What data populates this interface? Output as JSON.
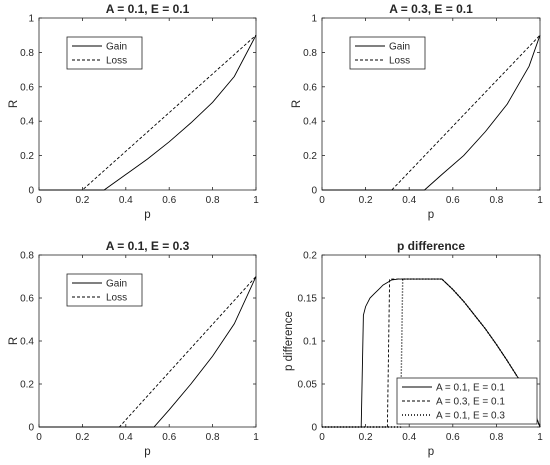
{
  "chart_data": [
    {
      "type": "line",
      "title": "A = 0.1, E = 0.1",
      "xlabel": "p",
      "ylabel": "R",
      "xlim": [
        0,
        1
      ],
      "ylim": [
        0,
        1
      ],
      "xticks": [
        "0",
        "0.2",
        "0.4",
        "0.6",
        "0.8",
        "1"
      ],
      "yticks": [
        "0",
        "0.2",
        "0.4",
        "0.6",
        "0.8",
        "1"
      ],
      "grid": false,
      "legend_position": "top-left",
      "series": [
        {
          "name": "Gain",
          "style": "solid",
          "x": [
            0,
            0.3,
            0.4,
            0.5,
            0.6,
            0.7,
            0.8,
            0.9,
            1.0
          ],
          "y": [
            0,
            0,
            0.09,
            0.18,
            0.28,
            0.39,
            0.51,
            0.66,
            0.9
          ]
        },
        {
          "name": "Loss",
          "style": "dashed",
          "x": [
            0,
            0.2,
            1.0
          ],
          "y": [
            0,
            0,
            0.9
          ]
        }
      ]
    },
    {
      "type": "line",
      "title": "A = 0.3, E = 0.1",
      "xlabel": "p",
      "ylabel": "R",
      "xlim": [
        0,
        1
      ],
      "ylim": [
        0,
        1
      ],
      "xticks": [
        "0",
        "0.2",
        "0.4",
        "0.6",
        "0.8",
        "1"
      ],
      "yticks": [
        "0",
        "0.2",
        "0.4",
        "0.6",
        "0.8",
        "1"
      ],
      "grid": false,
      "legend_position": "top-left",
      "series": [
        {
          "name": "Gain",
          "style": "solid",
          "x": [
            0,
            0.47,
            0.55,
            0.65,
            0.75,
            0.85,
            0.95,
            1.0
          ],
          "y": [
            0,
            0,
            0.09,
            0.2,
            0.34,
            0.5,
            0.72,
            0.9
          ]
        },
        {
          "name": "Loss",
          "style": "dashed",
          "x": [
            0,
            0.32,
            1.0
          ],
          "y": [
            0,
            0,
            0.9
          ]
        }
      ]
    },
    {
      "type": "line",
      "title": "A = 0.1, E = 0.3",
      "xlabel": "p",
      "ylabel": "R",
      "xlim": [
        0,
        1
      ],
      "ylim": [
        0,
        0.8
      ],
      "xticks": [
        "0",
        "0.2",
        "0.4",
        "0.6",
        "0.8",
        "1"
      ],
      "yticks": [
        "0",
        "0.2",
        "0.4",
        "0.6",
        "0.8"
      ],
      "grid": false,
      "legend_position": "top-left",
      "series": [
        {
          "name": "Gain",
          "style": "solid",
          "x": [
            0,
            0.53,
            0.6,
            0.7,
            0.8,
            0.9,
            1.0
          ],
          "y": [
            0,
            0,
            0.08,
            0.2,
            0.33,
            0.48,
            0.7
          ]
        },
        {
          "name": "Loss",
          "style": "dashed",
          "x": [
            0,
            0.37,
            1.0
          ],
          "y": [
            0,
            0,
            0.7
          ]
        }
      ]
    },
    {
      "type": "line",
      "title": "p difference",
      "xlabel": "p",
      "ylabel": "p difference",
      "xlim": [
        0,
        1
      ],
      "ylim": [
        0,
        0.2
      ],
      "xticks": [
        "0",
        "0.2",
        "0.4",
        "0.6",
        "0.8",
        "1"
      ],
      "yticks": [
        "0",
        "0.05",
        "0.1",
        "0.15",
        "0.2"
      ],
      "grid": false,
      "legend_position": "bottom-right",
      "series": [
        {
          "name": "A = 0.1, E = 0.1",
          "style": "solid",
          "x": [
            0,
            0.18,
            0.19,
            0.2,
            0.22,
            0.24,
            0.26,
            0.28,
            0.3,
            0.32,
            0.35,
            0.55,
            0.6,
            0.65,
            0.7,
            0.75,
            0.8,
            0.85,
            0.9,
            0.95,
            1.0
          ],
          "y": [
            0,
            0,
            0.13,
            0.14,
            0.15,
            0.155,
            0.16,
            0.165,
            0.168,
            0.171,
            0.172,
            0.172,
            0.16,
            0.146,
            0.13,
            0.114,
            0.096,
            0.077,
            0.057,
            0.033,
            0
          ]
        },
        {
          "name": "A = 0.3, E = 0.1",
          "style": "dashed",
          "x": [
            0,
            0.3,
            0.31,
            0.55,
            0.6,
            0.65,
            0.7,
            0.75,
            0.8,
            0.85,
            0.9,
            0.95,
            1.0
          ],
          "y": [
            0,
            0,
            0.172,
            0.172,
            0.16,
            0.146,
            0.13,
            0.114,
            0.096,
            0.077,
            0.057,
            0.033,
            0
          ]
        },
        {
          "name": "A = 0.1, E = 0.3",
          "style": "dotted",
          "x": [
            0,
            0.36,
            0.37,
            0.55,
            0.6,
            0.65,
            0.7,
            0.75,
            0.8,
            0.85,
            0.9,
            0.95,
            1.0
          ],
          "y": [
            0,
            0,
            0.172,
            0.172,
            0.16,
            0.146,
            0.13,
            0.114,
            0.096,
            0.077,
            0.057,
            0.033,
            0
          ]
        }
      ]
    }
  ]
}
